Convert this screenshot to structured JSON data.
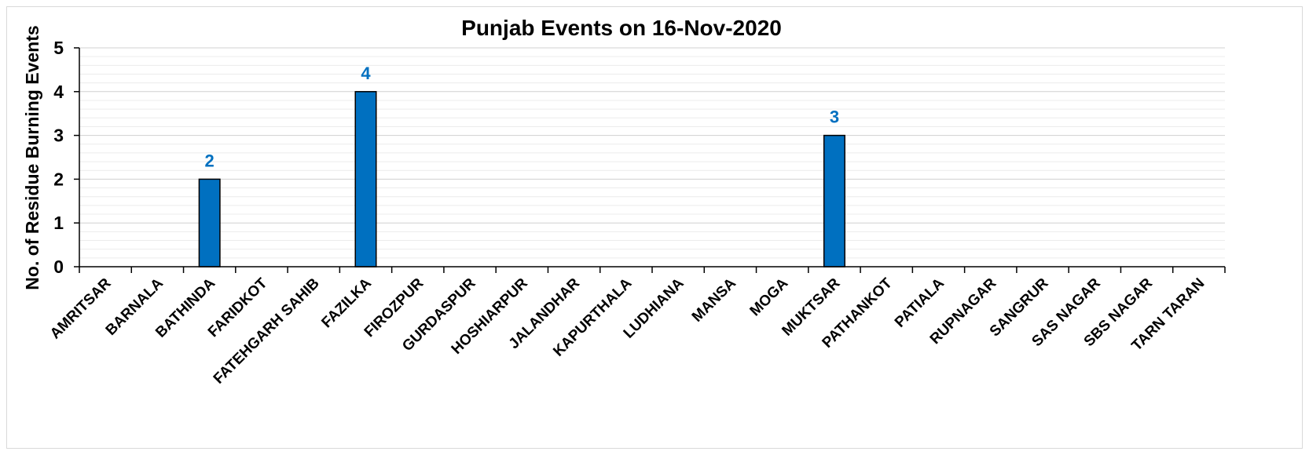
{
  "colors": {
    "bar_fill": "#0070C0",
    "bar_stroke": "#000000",
    "data_label": "#0070C0",
    "grid_major": "#d0d0d0",
    "grid_minor": "#ececec",
    "axis": "#000000"
  },
  "chart_data": {
    "type": "bar",
    "title": "Punjab Events on 16-Nov-2020",
    "xlabel": "",
    "ylabel": "No. of Residue Burning Events",
    "ylim": [
      0,
      5
    ],
    "yticks": [
      0,
      1,
      2,
      3,
      4,
      5
    ],
    "grid": true,
    "legend": "none",
    "categories": [
      "AMRITSAR",
      "BARNALA",
      "BATHINDA",
      "FARIDKOT",
      "FATEHGARH SAHIB",
      "FAZILKA",
      "FIROZPUR",
      "GURDASPUR",
      "HOSHIARPUR",
      "JALANDHAR",
      "KAPURTHALA",
      "LUDHIANA",
      "MANSA",
      "MOGA",
      "MUKTSAR",
      "PATHANKOT",
      "PATIALA",
      "RUPNAGAR",
      "SANGRUR",
      "SAS NAGAR",
      "SBS NAGAR",
      "TARN TARAN"
    ],
    "values": [
      0,
      0,
      2,
      0,
      0,
      4,
      0,
      0,
      0,
      0,
      0,
      0,
      0,
      0,
      3,
      0,
      0,
      0,
      0,
      0,
      0,
      0
    ],
    "data_labels": [
      "",
      "",
      "2",
      "",
      "",
      "4",
      "",
      "",
      "",
      "",
      "",
      "",
      "",
      "",
      "3",
      "",
      "",
      "",
      "",
      "",
      "",
      ""
    ]
  }
}
